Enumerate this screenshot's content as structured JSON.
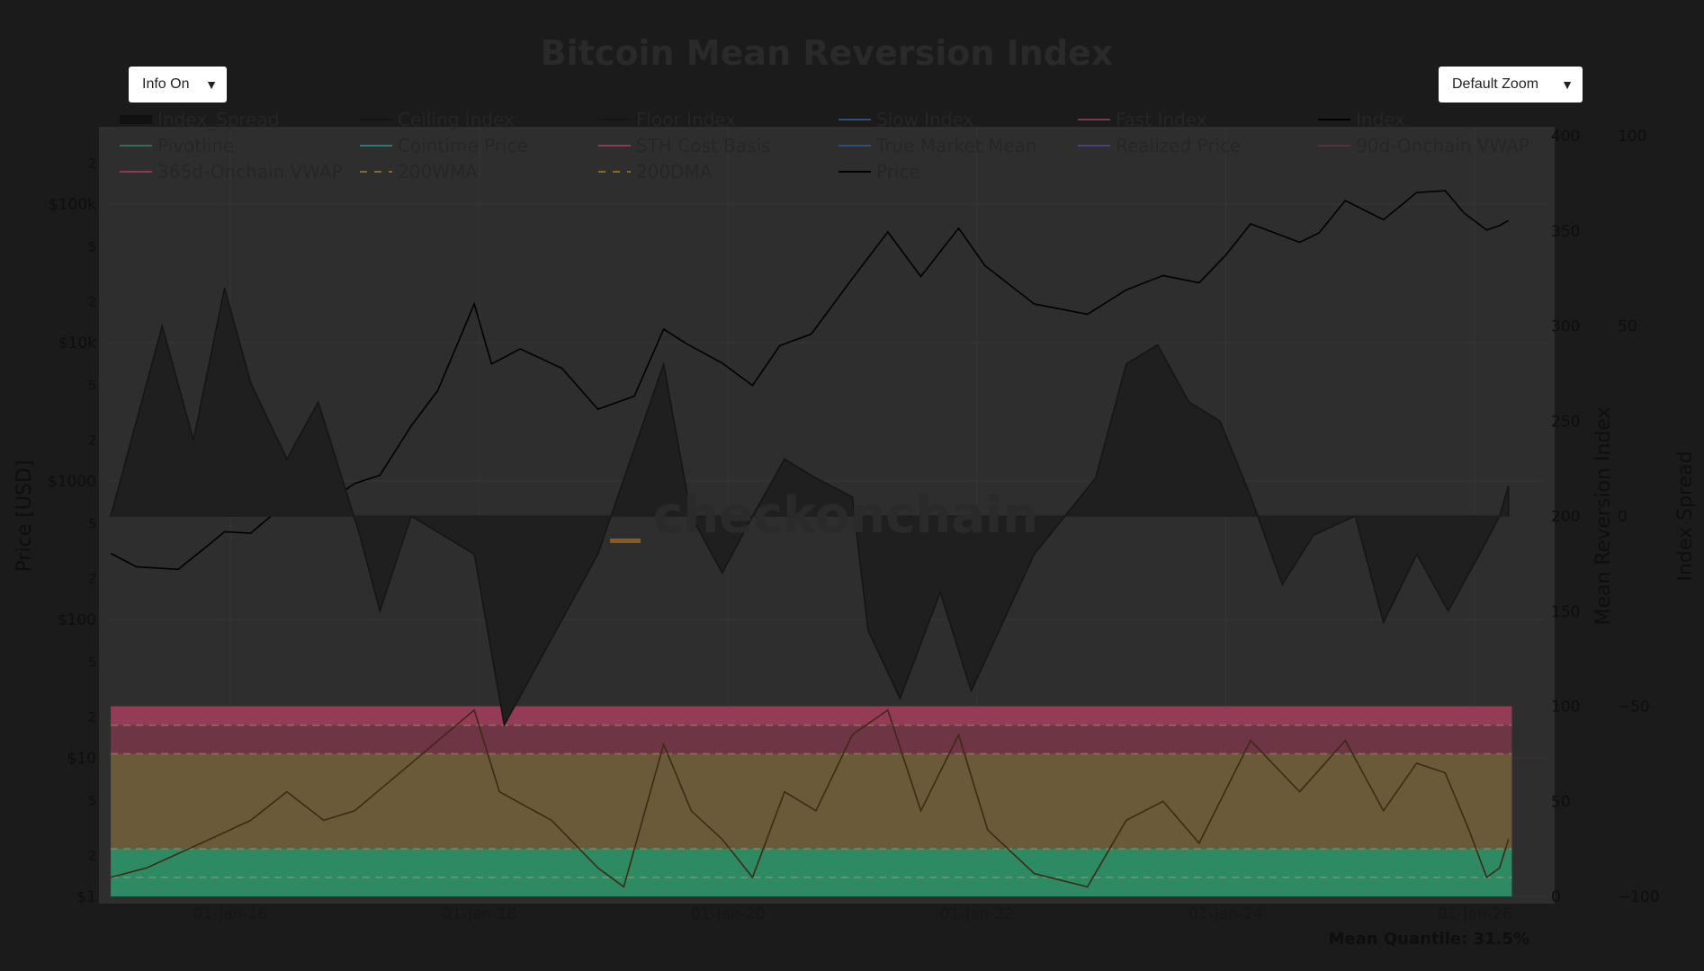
{
  "controls": {
    "info_dropdown": "Info On",
    "zoom_dropdown": "Default Zoom",
    "arrow_glyph": "▼"
  },
  "watermark": "checkonchain",
  "footer": "Mean Quantile: 31.5%",
  "chart_data": {
    "type": "line",
    "title": "Bitcoin Mean Reversion Index",
    "y_left": {
      "label": "Price [USD]",
      "scale": "log",
      "range": [
        1,
        400000
      ],
      "ticks": [
        {
          "v": 1,
          "t": "$1"
        },
        {
          "v": 2,
          "t": "2"
        },
        {
          "v": 5,
          "t": "5"
        },
        {
          "v": 10,
          "t": "$10"
        },
        {
          "v": 20,
          "t": "2"
        },
        {
          "v": 50,
          "t": "5"
        },
        {
          "v": 100,
          "t": "$100"
        },
        {
          "v": 200,
          "t": "2"
        },
        {
          "v": 500,
          "t": "5"
        },
        {
          "v": 1000,
          "t": "$1000"
        },
        {
          "v": 2000,
          "t": "2"
        },
        {
          "v": 5000,
          "t": "5"
        },
        {
          "v": 10000,
          "t": "$10k"
        },
        {
          "v": 20000,
          "t": "2"
        },
        {
          "v": 50000,
          "t": "5"
        },
        {
          "v": 100000,
          "t": "$100k"
        },
        {
          "v": 200000,
          "t": "2"
        }
      ]
    },
    "y_right": {
      "label": "Mean Reversion Index",
      "range": [
        0,
        400
      ],
      "ticks": [
        "0",
        "50",
        "100",
        "150",
        "200",
        "250",
        "300",
        "350",
        "400"
      ]
    },
    "y_right2": {
      "label": "Index Spread",
      "range": [
        -100,
        100
      ],
      "ticks": [
        "−100",
        "−50",
        "0",
        "50",
        "100"
      ]
    },
    "x_ticks": [
      {
        "d": "2016-01-01",
        "t": "01-Jan-16"
      },
      {
        "d": "2018-01-01",
        "t": "01-Jan-18"
      },
      {
        "d": "2020-01-01",
        "t": "01-Jan-20"
      },
      {
        "d": "2022-01-01",
        "t": "01-Jan-22"
      },
      {
        "d": "2024-01-01",
        "t": "01-Jan-24"
      },
      {
        "d": "2026-01-01",
        "t": "01-Jan-26"
      }
    ],
    "bands": [
      {
        "from": 0,
        "to": 25,
        "color": "#2e8a63"
      },
      {
        "from": 25,
        "to": 75,
        "color": "#6b5a3a"
      },
      {
        "from": 75,
        "to": 90,
        "color": "#6e3545"
      },
      {
        "from": 90,
        "to": 100,
        "color": "#943c55"
      }
    ],
    "band_dashed_levels": [
      10,
      25,
      75,
      90
    ],
    "legend": [
      {
        "name": "Index_Spread",
        "color": "#111111",
        "style": "fill"
      },
      {
        "name": "Ceiling Index",
        "color": "#151515",
        "style": "solid"
      },
      {
        "name": "Floor Index",
        "color": "#151515",
        "style": "solid"
      },
      {
        "name": "Slow Index",
        "color": "#2d4f7a",
        "style": "solid"
      },
      {
        "name": "Fast Index",
        "color": "#7a3a4a",
        "style": "solid"
      },
      {
        "name": "Index",
        "color": "#000000",
        "style": "solid"
      },
      {
        "name": "Pivotline",
        "color": "#2e6e5a",
        "style": "solid"
      },
      {
        "name": "Cointime Price",
        "color": "#2a7a7a",
        "style": "solid"
      },
      {
        "name": "STH Cost Basis",
        "color": "#8a3a55",
        "style": "solid"
      },
      {
        "name": "True Market Mean",
        "color": "#2d4f7a",
        "style": "solid"
      },
      {
        "name": "Realized Price",
        "color": "#4a3f7a",
        "style": "solid"
      },
      {
        "name": "90d-Onchain VWAP",
        "color": "#5a3040",
        "style": "solid"
      },
      {
        "name": "365d-Onchain VWAP",
        "color": "#8a3a55",
        "style": "solid"
      },
      {
        "name": "200WMA",
        "color": "#8a6a2a",
        "style": "dash"
      },
      {
        "name": "200DMA",
        "color": "#8a6a2a",
        "style": "dash"
      },
      {
        "name": "Price",
        "color": "#000000",
        "style": "solid"
      }
    ],
    "series": [
      {
        "name": "Price",
        "axis": "price",
        "color": "#000000",
        "points": [
          [
            "2015-01-15",
            300
          ],
          [
            "2015-04-01",
            240
          ],
          [
            "2015-08-01",
            230
          ],
          [
            "2015-11-01",
            350
          ],
          [
            "2015-12-15",
            430
          ],
          [
            "2016-03-01",
            420
          ],
          [
            "2016-06-15",
            700
          ],
          [
            "2016-09-01",
            600
          ],
          [
            "2016-12-31",
            960
          ],
          [
            "2017-03-15",
            1100
          ],
          [
            "2017-06-15",
            2500
          ],
          [
            "2017-09-01",
            4500
          ],
          [
            "2017-12-17",
            19000
          ],
          [
            "2018-02-06",
            7000
          ],
          [
            "2018-05-01",
            9000
          ],
          [
            "2018-09-01",
            6500
          ],
          [
            "2018-12-15",
            3300
          ],
          [
            "2019-04-01",
            4100
          ],
          [
            "2019-06-26",
            12500
          ],
          [
            "2019-09-01",
            9800
          ],
          [
            "2019-12-15",
            7100
          ],
          [
            "2020-03-13",
            4900
          ],
          [
            "2020-06-01",
            9500
          ],
          [
            "2020-09-01",
            11500
          ],
          [
            "2020-12-31",
            29000
          ],
          [
            "2021-04-14",
            63000
          ],
          [
            "2021-07-20",
            30000
          ],
          [
            "2021-11-08",
            67000
          ],
          [
            "2022-01-24",
            36000
          ],
          [
            "2022-06-18",
            19000
          ],
          [
            "2022-11-21",
            16000
          ],
          [
            "2023-03-15",
            24000
          ],
          [
            "2023-07-01",
            30500
          ],
          [
            "2023-10-15",
            27000
          ],
          [
            "2023-12-31",
            42500
          ],
          [
            "2024-03-14",
            72000
          ],
          [
            "2024-08-05",
            53000
          ],
          [
            "2024-10-01",
            62000
          ],
          [
            "2024-12-17",
            106000
          ],
          [
            "2025-04-08",
            77000
          ],
          [
            "2025-07-14",
            121000
          ],
          [
            "2025-10-06",
            125000
          ],
          [
            "2025-12-01",
            86000
          ],
          [
            "2026-02-05",
            65000
          ],
          [
            "2026-03-15",
            70000
          ],
          [
            "2026-04-10",
            76000
          ]
        ]
      },
      {
        "name": "Index",
        "axis": "index",
        "color": "#000000",
        "points": [
          [
            "2015-01-15",
            10
          ],
          [
            "2015-05-01",
            15
          ],
          [
            "2015-11-01",
            30
          ],
          [
            "2016-03-01",
            40
          ],
          [
            "2016-06-15",
            55
          ],
          [
            "2016-10-01",
            40
          ],
          [
            "2016-12-31",
            45
          ],
          [
            "2017-06-15",
            70
          ],
          [
            "2017-12-17",
            98
          ],
          [
            "2018-03-01",
            55
          ],
          [
            "2018-08-01",
            40
          ],
          [
            "2018-12-15",
            15
          ],
          [
            "2019-03-01",
            5
          ],
          [
            "2019-06-26",
            80
          ],
          [
            "2019-09-15",
            45
          ],
          [
            "2019-12-15",
            30
          ],
          [
            "2020-03-13",
            10
          ],
          [
            "2020-06-15",
            55
          ],
          [
            "2020-09-15",
            45
          ],
          [
            "2020-12-31",
            85
          ],
          [
            "2021-04-14",
            98
          ],
          [
            "2021-07-20",
            45
          ],
          [
            "2021-11-08",
            85
          ],
          [
            "2022-02-01",
            35
          ],
          [
            "2022-06-18",
            12
          ],
          [
            "2022-11-21",
            5
          ],
          [
            "2023-03-15",
            40
          ],
          [
            "2023-07-01",
            50
          ],
          [
            "2023-10-15",
            28
          ],
          [
            "2024-03-14",
            82
          ],
          [
            "2024-08-05",
            55
          ],
          [
            "2024-12-17",
            82
          ],
          [
            "2025-04-08",
            45
          ],
          [
            "2025-07-14",
            70
          ],
          [
            "2025-10-06",
            65
          ],
          [
            "2025-12-15",
            35
          ],
          [
            "2026-02-05",
            10
          ],
          [
            "2026-03-15",
            15
          ],
          [
            "2026-04-10",
            30
          ]
        ]
      },
      {
        "name": "Index_Spread",
        "axis": "spread",
        "color": "#141414",
        "points": [
          [
            "2015-01-15",
            0
          ],
          [
            "2015-06-15",
            50
          ],
          [
            "2015-09-15",
            20
          ],
          [
            "2015-12-15",
            60
          ],
          [
            "2016-03-01",
            35
          ],
          [
            "2016-06-15",
            15
          ],
          [
            "2016-09-15",
            30
          ],
          [
            "2017-01-15",
            -5
          ],
          [
            "2017-03-15",
            -25
          ],
          [
            "2017-06-15",
            0
          ],
          [
            "2017-09-15",
            -5
          ],
          [
            "2017-12-17",
            -10
          ],
          [
            "2018-03-15",
            -55
          ],
          [
            "2018-06-15",
            -40
          ],
          [
            "2018-12-15",
            -10
          ],
          [
            "2019-06-26",
            40
          ],
          [
            "2019-09-15",
            0
          ],
          [
            "2019-12-15",
            -15
          ],
          [
            "2020-03-13",
            0
          ],
          [
            "2020-06-15",
            15
          ],
          [
            "2020-09-15",
            10
          ],
          [
            "2020-12-31",
            5
          ],
          [
            "2021-02-15",
            -30
          ],
          [
            "2021-05-20",
            -48
          ],
          [
            "2021-09-15",
            -20
          ],
          [
            "2021-12-15",
            -46
          ],
          [
            "2022-06-18",
            -10
          ],
          [
            "2022-12-15",
            10
          ],
          [
            "2023-03-15",
            40
          ],
          [
            "2023-06-15",
            45
          ],
          [
            "2023-09-15",
            30
          ],
          [
            "2023-12-15",
            25
          ],
          [
            "2024-03-15",
            5
          ],
          [
            "2024-06-15",
            -18
          ],
          [
            "2024-09-15",
            -5
          ],
          [
            "2025-01-15",
            0
          ],
          [
            "2025-04-08",
            -28
          ],
          [
            "2025-07-15",
            -10
          ],
          [
            "2025-10-15",
            -25
          ],
          [
            "2026-01-15",
            -10
          ],
          [
            "2026-03-15",
            0
          ],
          [
            "2026-04-10",
            8
          ]
        ]
      }
    ]
  }
}
